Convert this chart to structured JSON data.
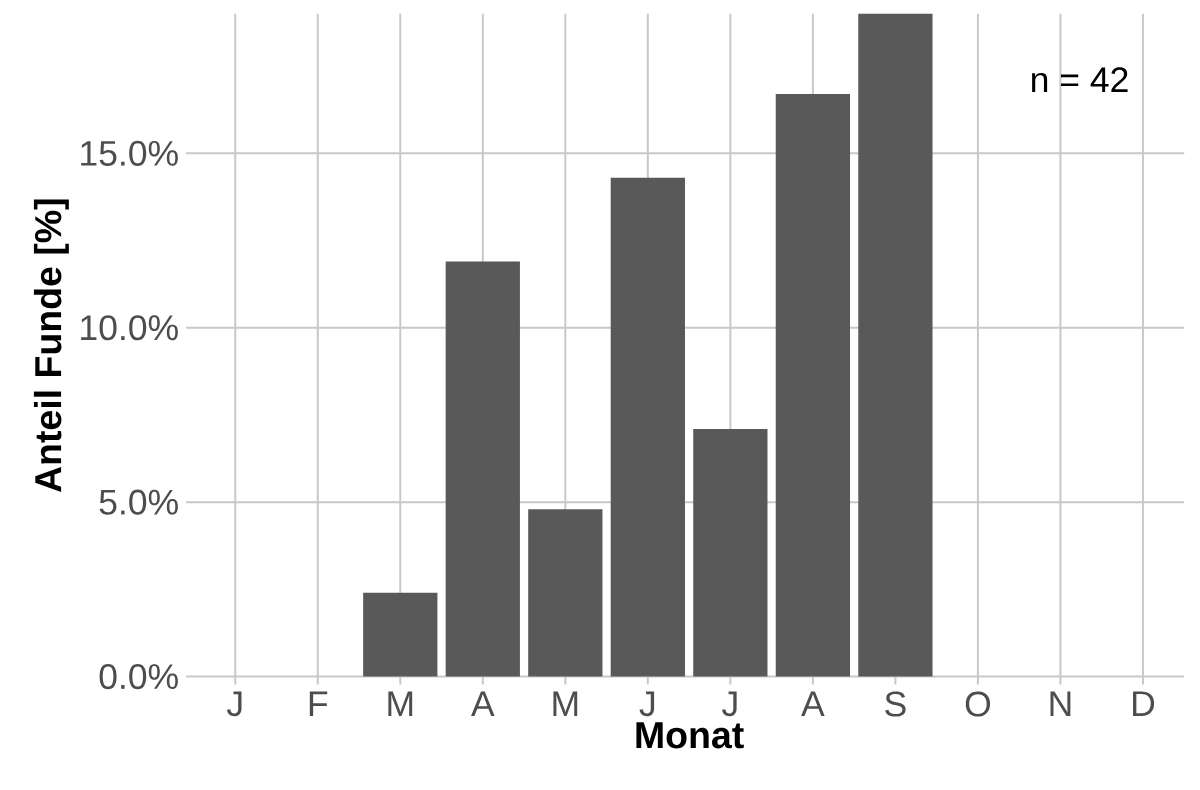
{
  "chart_data": {
    "type": "bar",
    "categories": [
      "J",
      "F",
      "M",
      "A",
      "M",
      "J",
      "J",
      "A",
      "S",
      "O",
      "N",
      "D"
    ],
    "values": [
      0,
      0,
      2.4,
      11.9,
      4.8,
      14.3,
      7.1,
      16.7,
      19.0,
      0,
      0,
      0
    ],
    "color": "#595959",
    "xlabel": "Monat",
    "ylabel": "Anteil Funde [%]",
    "ylim": [
      0,
      19.0
    ],
    "yticks": [
      {
        "value": 0,
        "label": "0.0%"
      },
      {
        "value": 5,
        "label": "5.0%"
      },
      {
        "value": 10,
        "label": "10.0%"
      },
      {
        "value": 15,
        "label": "15.0%"
      }
    ],
    "grid": true,
    "annotations": [
      "n = 42"
    ]
  }
}
